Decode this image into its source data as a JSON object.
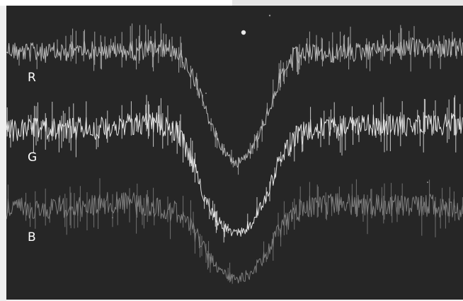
{
  "chart_data": {
    "type": "line",
    "title": "",
    "xlabel": "",
    "ylabel": "",
    "grid": false,
    "legend": "none",
    "colors": {
      "background": "#262626",
      "page": "#efefef"
    },
    "x": [
      0,
      0.05,
      0.1,
      0.15,
      0.2,
      0.25,
      0.3,
      0.35,
      0.4,
      0.45,
      0.5,
      0.55,
      0.6,
      0.65,
      0.7,
      0.75,
      0.8,
      0.85,
      0.9,
      0.95,
      1.0
    ],
    "series": [
      {
        "name": "R",
        "color": "#b8b8b8",
        "values": [
          0.0,
          0.0,
          0.0,
          0.0,
          0.0,
          0.01,
          0.05,
          0.3,
          0.62,
          0.88,
          1.0,
          0.88,
          0.62,
          0.28,
          0.06,
          0.01,
          0.0,
          0.0,
          0.0,
          0.0,
          0.0
        ]
      },
      {
        "name": "G",
        "color": "#e4e4e4",
        "values": [
          0.0,
          0.0,
          0.0,
          0.0,
          0.0,
          0.02,
          0.08,
          0.38,
          0.72,
          0.92,
          1.0,
          0.9,
          0.66,
          0.3,
          0.06,
          0.0,
          0.0,
          0.0,
          0.0,
          0.0,
          0.0
        ]
      },
      {
        "name": "B",
        "color": "#7e7e7e",
        "values": [
          0.0,
          0.0,
          0.0,
          0.0,
          0.0,
          0.01,
          0.06,
          0.32,
          0.66,
          0.9,
          1.0,
          0.88,
          0.64,
          0.3,
          0.06,
          0.01,
          0.0,
          0.0,
          0.0,
          0.0,
          0.0
        ]
      }
    ]
  }
}
